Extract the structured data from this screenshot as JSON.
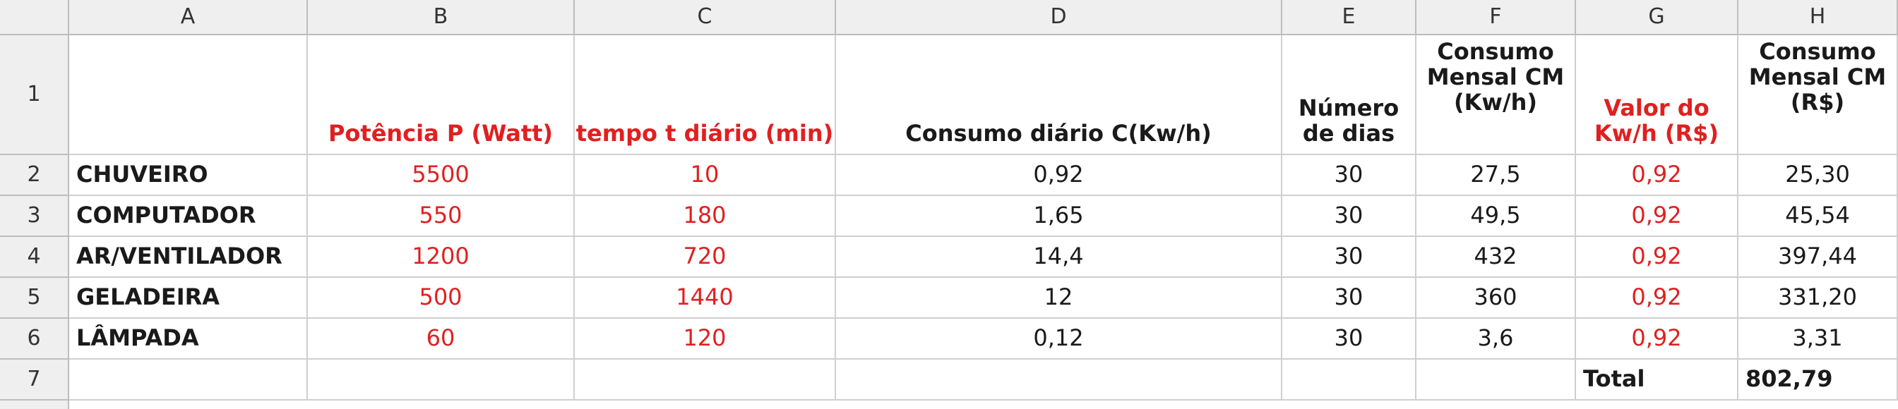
{
  "columns": [
    "A",
    "B",
    "C",
    "D",
    "E",
    "F",
    "G",
    "H"
  ],
  "rows": [
    "1",
    "2",
    "3",
    "4",
    "5",
    "6",
    "7"
  ],
  "headers": {
    "A": "",
    "B": "Potência P (Watt)",
    "C": "tempo t diário (min)",
    "D": "Consumo diário C(Kw/h)",
    "E": "Número de dias",
    "F": "Consumo Mensal CM (Kw/h)",
    "G": "Valor do Kw/h (R$)",
    "H": "Consumo Mensal CM (R$)"
  },
  "data": [
    {
      "device": "CHUVEIRO",
      "power": "5500",
      "time": "10",
      "daily": "0,92",
      "days": "30",
      "monthly_kwh": "27,5",
      "price": "0,92",
      "monthly_brl": "25,30"
    },
    {
      "device": "COMPUTADOR",
      "power": "550",
      "time": "180",
      "daily": "1,65",
      "days": "30",
      "monthly_kwh": "49,5",
      "price": "0,92",
      "monthly_brl": "45,54"
    },
    {
      "device": "AR/VENTILADOR",
      "power": "1200",
      "time": "720",
      "daily": "14,4",
      "days": "30",
      "monthly_kwh": "432",
      "price": "0,92",
      "monthly_brl": "397,44"
    },
    {
      "device": "GELADEIRA",
      "power": "500",
      "time": "1440",
      "daily": "12",
      "days": "30",
      "monthly_kwh": "360",
      "price": "0,92",
      "monthly_brl": "331,20"
    },
    {
      "device": "LÂMPADA",
      "power": "60",
      "time": "120",
      "daily": "0,12",
      "days": "30",
      "monthly_kwh": "3,6",
      "price": "0,92",
      "monthly_brl": "3,31"
    }
  ],
  "total": {
    "label": "Total",
    "value": "802,79"
  },
  "colors": {
    "header_bg": "#efefef",
    "grid": "#cfcfcf",
    "red": "#e02020",
    "text": "#1a1a1a"
  }
}
